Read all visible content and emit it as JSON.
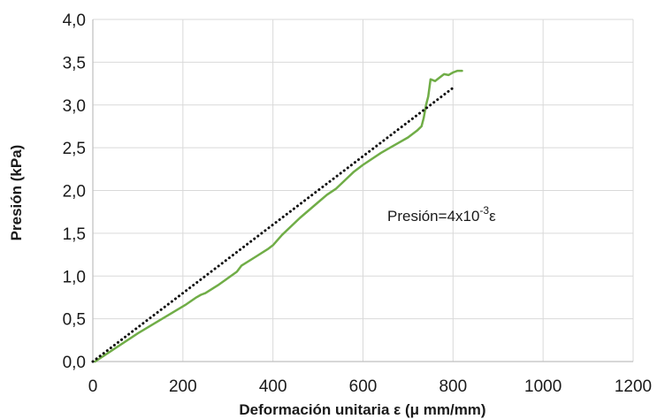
{
  "chart_data": {
    "type": "line",
    "xlabel": "Deformación unitaria ε (μ mm/mm)",
    "ylabel": "Presión (kPa)",
    "xlim": [
      0,
      1200
    ],
    "ylim": [
      0,
      4
    ],
    "x_ticks": [
      0,
      200,
      400,
      600,
      800,
      1000,
      1200
    ],
    "y_ticks": [
      0,
      0.5,
      1,
      1.5,
      2,
      2.5,
      3,
      3.5,
      4
    ],
    "x_tick_labels": [
      "0",
      "200",
      "400",
      "600",
      "800",
      "1000",
      "1200"
    ],
    "y_tick_labels": [
      "0,0",
      "0,5",
      "1,0",
      "1,5",
      "2,0",
      "2,5",
      "3,0",
      "3,5",
      "4,0"
    ],
    "grid": true,
    "annotation": {
      "prefix": "Presión=4x10",
      "exponent": "-3",
      "suffix": "ε"
    },
    "series": [
      {
        "style": "solid",
        "color": "#70ad47",
        "x": [
          5,
          100,
          205,
          230,
          240,
          250,
          280,
          320,
          330,
          360,
          390,
          400,
          420,
          460,
          500,
          520,
          540,
          580,
          600,
          640,
          660,
          680,
          700,
          720,
          730,
          735,
          740,
          745,
          750,
          760,
          770,
          780,
          790,
          800,
          810,
          820
        ],
        "y": [
          0.0,
          0.33,
          0.66,
          0.75,
          0.78,
          0.8,
          0.9,
          1.05,
          1.12,
          1.22,
          1.32,
          1.36,
          1.48,
          1.68,
          1.86,
          1.95,
          2.02,
          2.22,
          2.3,
          2.44,
          2.5,
          2.56,
          2.62,
          2.7,
          2.75,
          2.85,
          3.0,
          3.1,
          3.3,
          3.28,
          3.32,
          3.36,
          3.35,
          3.38,
          3.4,
          3.4
        ]
      },
      {
        "style": "dotted",
        "color": "#111111",
        "x": [
          0,
          800
        ],
        "y": [
          0,
          3.2
        ]
      }
    ]
  }
}
